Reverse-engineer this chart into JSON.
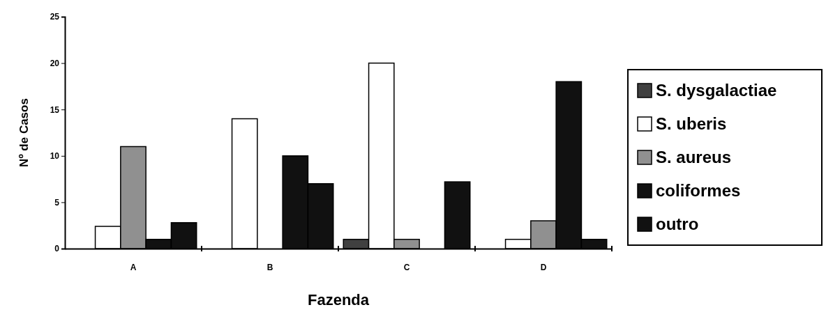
{
  "chart_data": {
    "type": "bar",
    "xlabel": "Fazenda",
    "ylabel": "Nº de Casos",
    "categories": [
      "A",
      "B",
      "C",
      "D"
    ],
    "series": [
      {
        "name": "S. dysgalactiae",
        "color": "#404040",
        "values": [
          0,
          0,
          1,
          0
        ]
      },
      {
        "name": "S. uberis",
        "color": "#ffffff",
        "values": [
          2.4,
          14,
          20,
          1
        ]
      },
      {
        "name": "S. aureus",
        "color": "#909090",
        "values": [
          11,
          0,
          1,
          3
        ]
      },
      {
        "name": "coliformes",
        "color": "#111111",
        "values": [
          1,
          10,
          0,
          18
        ]
      },
      {
        "name": "outro",
        "color": "#111111",
        "values": [
          2.8,
          7,
          7.2,
          1
        ]
      }
    ],
    "ylim": [
      0,
      25
    ],
    "yticks": [
      0,
      5,
      10,
      15,
      20,
      25
    ],
    "grid": false,
    "legend": "right"
  }
}
